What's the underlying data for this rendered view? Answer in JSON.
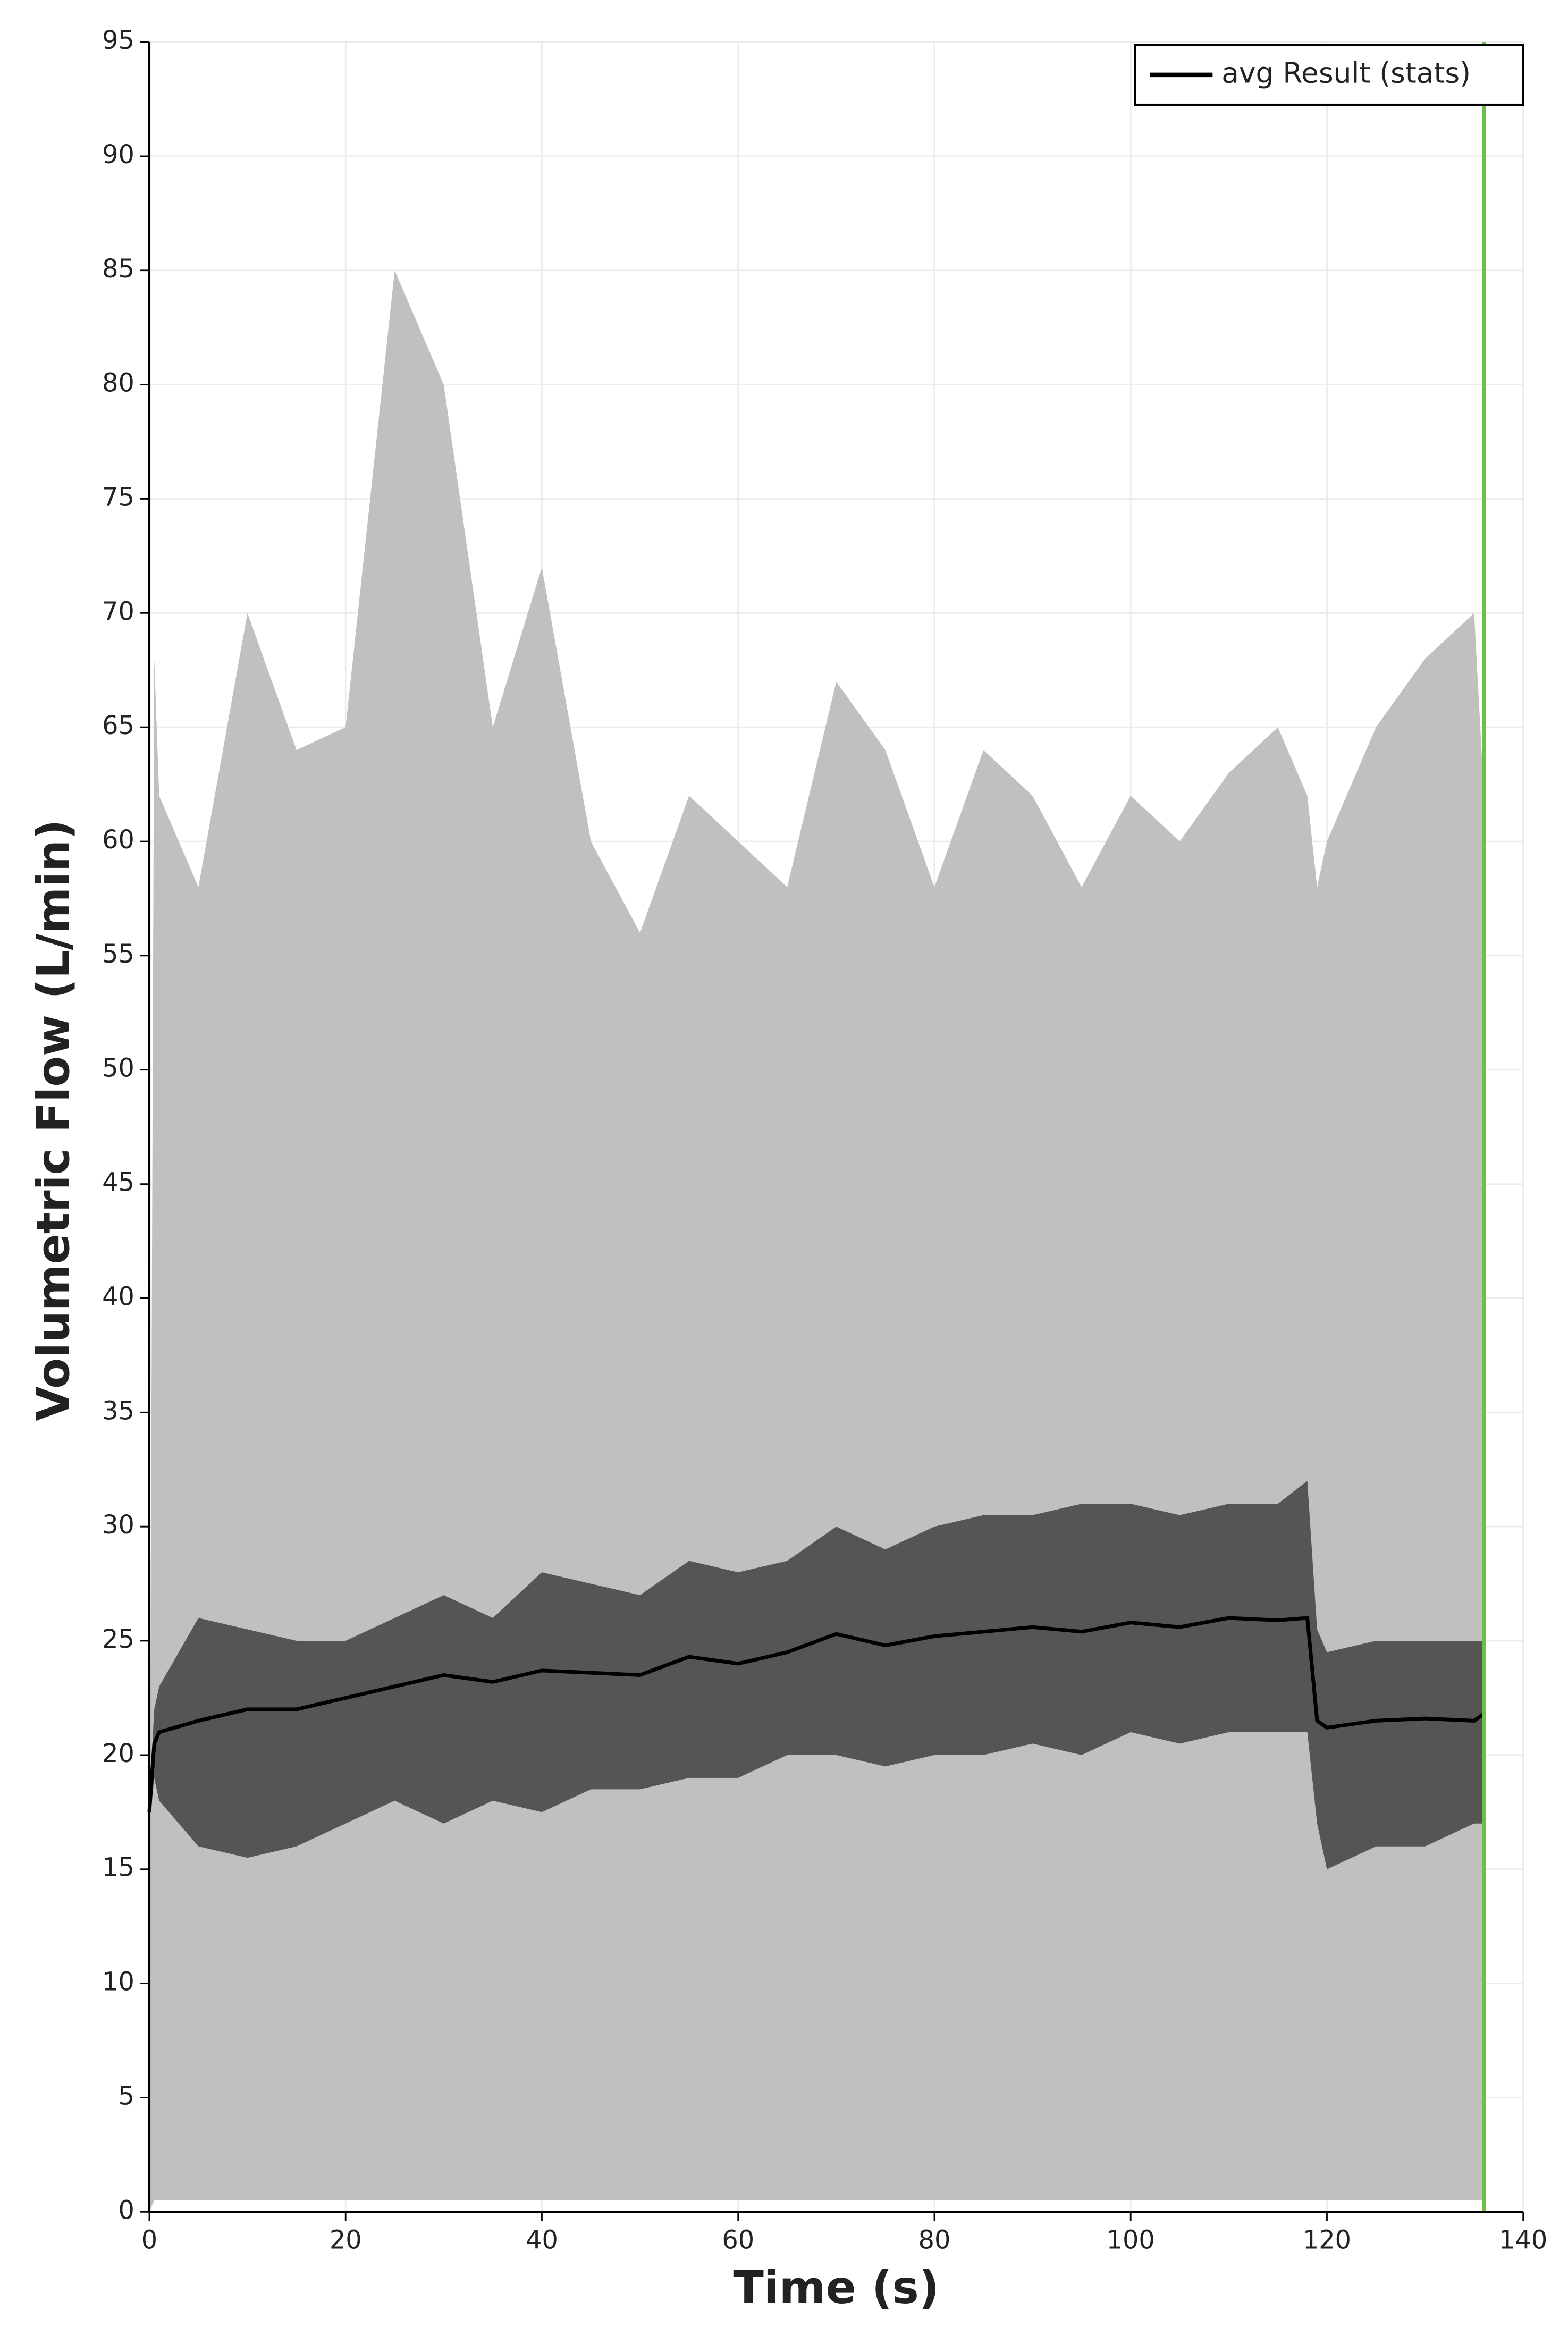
{
  "chart_data": {
    "type": "line",
    "xlabel": "Time (s)",
    "ylabel": "Volumetric Flow (L/min)",
    "x": [
      0,
      0.5,
      1,
      5,
      10,
      15,
      20,
      25,
      30,
      35,
      40,
      45,
      50,
      55,
      60,
      65,
      70,
      75,
      80,
      85,
      90,
      95,
      100,
      105,
      110,
      115,
      118,
      119,
      120,
      125,
      130,
      135,
      136
    ],
    "series": [
      {
        "name": "avg Result (stats)",
        "color": "#000000",
        "values": [
          17.5,
          20.5,
          21,
          21.5,
          22,
          22,
          22.5,
          23,
          23.5,
          23.2,
          23.7,
          23.6,
          23.5,
          24.3,
          24,
          24.5,
          25.3,
          24.8,
          25.2,
          25.4,
          25.6,
          25.4,
          25.8,
          25.6,
          26,
          25.9,
          26,
          21.5,
          21.2,
          21.5,
          21.6,
          21.5,
          21.8
        ]
      }
    ],
    "bands": [
      {
        "color": "#c0c0c0",
        "upper": [
          10,
          68,
          62,
          58,
          70,
          64,
          65,
          85,
          80,
          65,
          72,
          60,
          56,
          62,
          60,
          58,
          67,
          64,
          58,
          64,
          62,
          58,
          62,
          60,
          63,
          65,
          62,
          58,
          60,
          65,
          68,
          70,
          62
        ],
        "lower": [
          0,
          0.5,
          0.5,
          0.5,
          0.5,
          0.5,
          0.5,
          0.5,
          0.5,
          0.5,
          0.5,
          0.5,
          0.5,
          0.5,
          0.5,
          0.5,
          0.5,
          0.5,
          0.5,
          0.5,
          0.5,
          0.5,
          0.5,
          0.5,
          0.5,
          0.5,
          0.5,
          0.5,
          0.5,
          0.5,
          0.5,
          0.5,
          0.5
        ]
      },
      {
        "color": "#555555",
        "upper": [
          18,
          22,
          23,
          26,
          25.5,
          25,
          25,
          26,
          27,
          26,
          28,
          27.5,
          27,
          28.5,
          28,
          28.5,
          30,
          29,
          30,
          30.5,
          30.5,
          31,
          31,
          30.5,
          31,
          31,
          32,
          25.5,
          24.5,
          25,
          25,
          25,
          25
        ],
        "lower": [
          17,
          19,
          18,
          16,
          15.5,
          16,
          17,
          18,
          17,
          18,
          17.5,
          18.5,
          18.5,
          19,
          19,
          20,
          20,
          19.5,
          20,
          20,
          20.5,
          20,
          21,
          20.5,
          21,
          21,
          21,
          17,
          15,
          16,
          16,
          17,
          17
        ]
      }
    ],
    "vline": {
      "x": 136,
      "color": "#6cc04a"
    },
    "xlim": [
      0,
      140
    ],
    "xticks": [
      0,
      20,
      40,
      60,
      80,
      100,
      120,
      140
    ],
    "ylim": [
      0,
      95
    ],
    "yticks": [
      0,
      5,
      10,
      15,
      20,
      25,
      30,
      35,
      40,
      45,
      50,
      55,
      60,
      65,
      70,
      75,
      80,
      85,
      90,
      95
    ],
    "grid": true,
    "legend": "upper right"
  }
}
